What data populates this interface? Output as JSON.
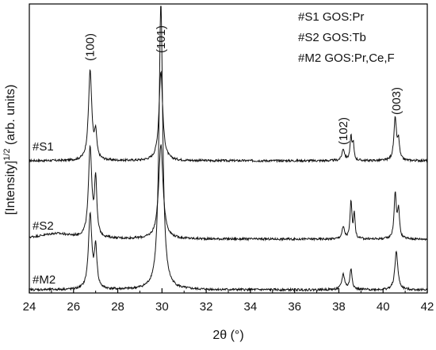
{
  "chart_data": {
    "type": "line",
    "title": "",
    "xlabel": "2θ (°)",
    "ylabel_main": "[Intensity]",
    "ylabel_sup": "1/2",
    "ylabel_tail": " (arb. units)",
    "xlim": [
      24,
      42
    ],
    "x_ticks": [
      24,
      26,
      28,
      30,
      32,
      34,
      36,
      38,
      40,
      42
    ],
    "y_ticks_shown": false,
    "legend_position": "top-right",
    "legend_lines": [
      "#S1 GOS:Pr",
      "#S2 GOS:Tb",
      "#M2 GOS:Pr,Ce,F"
    ],
    "peak_labels": [
      {
        "text": "(100)",
        "x": 26.75
      },
      {
        "text": "(101)",
        "x": 29.95
      },
      {
        "text": "(102)",
        "x": 38.2
      },
      {
        "text": "(003)",
        "x": 40.6
      }
    ],
    "series": [
      {
        "name": "#S1",
        "baseline": 0,
        "peaks": [
          {
            "x": 26.75,
            "height": 1.0,
            "width": 0.09
          },
          {
            "x": 27.0,
            "height": 0.28,
            "width": 0.06
          },
          {
            "x": 29.95,
            "height": 1.0,
            "width": 0.1
          },
          {
            "x": 38.2,
            "height": 0.13,
            "width": 0.07
          },
          {
            "x": 38.55,
            "height": 0.26,
            "width": 0.05
          },
          {
            "x": 38.65,
            "height": 0.18,
            "width": 0.04
          },
          {
            "x": 40.55,
            "height": 0.47,
            "width": 0.07
          },
          {
            "x": 40.7,
            "height": 0.2,
            "width": 0.05
          }
        ]
      },
      {
        "name": "#S2",
        "baseline": 0,
        "peaks": [
          {
            "x": 25.2,
            "height": 0.06,
            "width": 0.9
          },
          {
            "x": 26.75,
            "height": 1.0,
            "width": 0.09
          },
          {
            "x": 27.0,
            "height": 0.63,
            "width": 0.06
          },
          {
            "x": 29.95,
            "height": 1.05,
            "width": 0.12
          },
          {
            "x": 38.2,
            "height": 0.13,
            "width": 0.07
          },
          {
            "x": 38.55,
            "height": 0.42,
            "width": 0.05
          },
          {
            "x": 38.7,
            "height": 0.28,
            "width": 0.04
          },
          {
            "x": 40.55,
            "height": 0.51,
            "width": 0.06
          },
          {
            "x": 40.7,
            "height": 0.32,
            "width": 0.05
          }
        ]
      },
      {
        "name": "#M2",
        "baseline": 0,
        "peaks": [
          {
            "x": 26.75,
            "height": 0.83,
            "width": 0.09
          },
          {
            "x": 27.0,
            "height": 0.45,
            "width": 0.07
          },
          {
            "x": 29.95,
            "height": 3.2,
            "width": 0.1
          },
          {
            "x": 38.2,
            "height": 0.17,
            "width": 0.08
          },
          {
            "x": 38.55,
            "height": 0.23,
            "width": 0.06
          },
          {
            "x": 40.6,
            "height": 0.43,
            "width": 0.08
          }
        ]
      }
    ]
  }
}
